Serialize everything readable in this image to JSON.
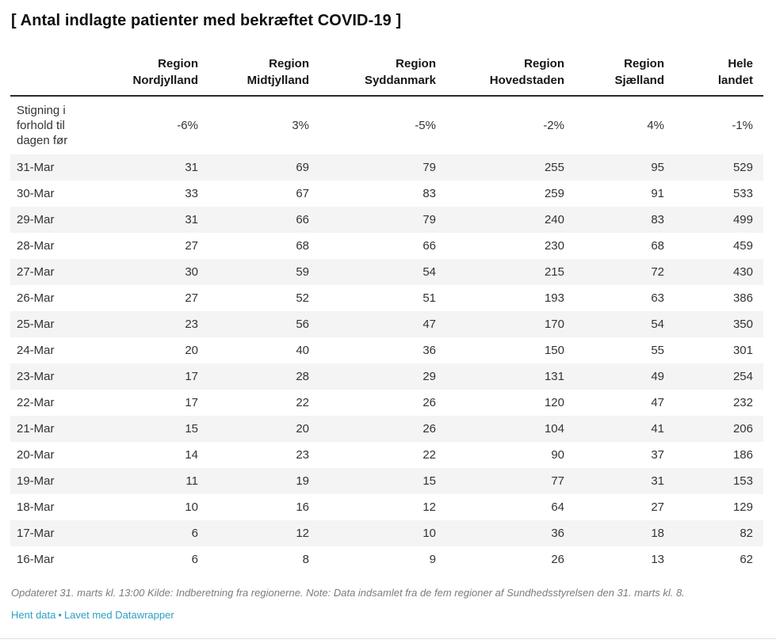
{
  "title": "[ Antal indlagte patienter med bekræftet COVID-19 ]",
  "chart_data": {
    "type": "table",
    "title": "[ Antal indlagte patienter med bekræftet COVID-19 ]",
    "row_header_label": "",
    "columns": [
      "Region\nNordjylland",
      "Region\nMidtjylland",
      "Region\nSyddanmark",
      "Region\nHovedstaden",
      "Region\nSjælland",
      "Hele\nlandet"
    ],
    "rows": [
      {
        "label": "Stigning i forhold til dagen før",
        "values": [
          "-6%",
          "3%",
          "-5%",
          "-2%",
          "4%",
          "-1%"
        ]
      },
      {
        "label": "31-Mar",
        "values": [
          "31",
          "69",
          "79",
          "255",
          "95",
          "529"
        ]
      },
      {
        "label": "30-Mar",
        "values": [
          "33",
          "67",
          "83",
          "259",
          "91",
          "533"
        ]
      },
      {
        "label": "29-Mar",
        "values": [
          "31",
          "66",
          "79",
          "240",
          "83",
          "499"
        ]
      },
      {
        "label": "28-Mar",
        "values": [
          "27",
          "68",
          "66",
          "230",
          "68",
          "459"
        ]
      },
      {
        "label": "27-Mar",
        "values": [
          "30",
          "59",
          "54",
          "215",
          "72",
          "430"
        ]
      },
      {
        "label": "26-Mar",
        "values": [
          "27",
          "52",
          "51",
          "193",
          "63",
          "386"
        ]
      },
      {
        "label": "25-Mar",
        "values": [
          "23",
          "56",
          "47",
          "170",
          "54",
          "350"
        ]
      },
      {
        "label": "24-Mar",
        "values": [
          "20",
          "40",
          "36",
          "150",
          "55",
          "301"
        ]
      },
      {
        "label": "23-Mar",
        "values": [
          "17",
          "28",
          "29",
          "131",
          "49",
          "254"
        ]
      },
      {
        "label": "22-Mar",
        "values": [
          "17",
          "22",
          "26",
          "120",
          "47",
          "232"
        ]
      },
      {
        "label": "21-Mar",
        "values": [
          "15",
          "20",
          "26",
          "104",
          "41",
          "206"
        ]
      },
      {
        "label": "20-Mar",
        "values": [
          "14",
          "23",
          "22",
          "90",
          "37",
          "186"
        ]
      },
      {
        "label": "19-Mar",
        "values": [
          "11",
          "19",
          "15",
          "77",
          "31",
          "153"
        ]
      },
      {
        "label": "18-Mar",
        "values": [
          "10",
          "16",
          "12",
          "64",
          "27",
          "129"
        ]
      },
      {
        "label": "17-Mar",
        "values": [
          "6",
          "12",
          "10",
          "36",
          "18",
          "82"
        ]
      },
      {
        "label": "16-Mar",
        "values": [
          "6",
          "8",
          "9",
          "26",
          "13",
          "62"
        ]
      }
    ]
  },
  "footer": {
    "notes": "Opdateret 31. marts kl. 13:00 Kilde: Indberetning fra regionerne. Note: Data indsamlet fra de fem regioner af Sundhedsstyrelsen den 31. marts kl. 8.",
    "links": [
      {
        "label": "Hent data"
      },
      {
        "label": "Lavet med Datawrapper"
      }
    ],
    "separator": "•"
  },
  "colors": {
    "link": "#2d9fc5",
    "stripe": "#f4f4f4",
    "header_border": "#2a2a2a",
    "body_text": "#333333",
    "notes_text": "#7c7c7c"
  }
}
